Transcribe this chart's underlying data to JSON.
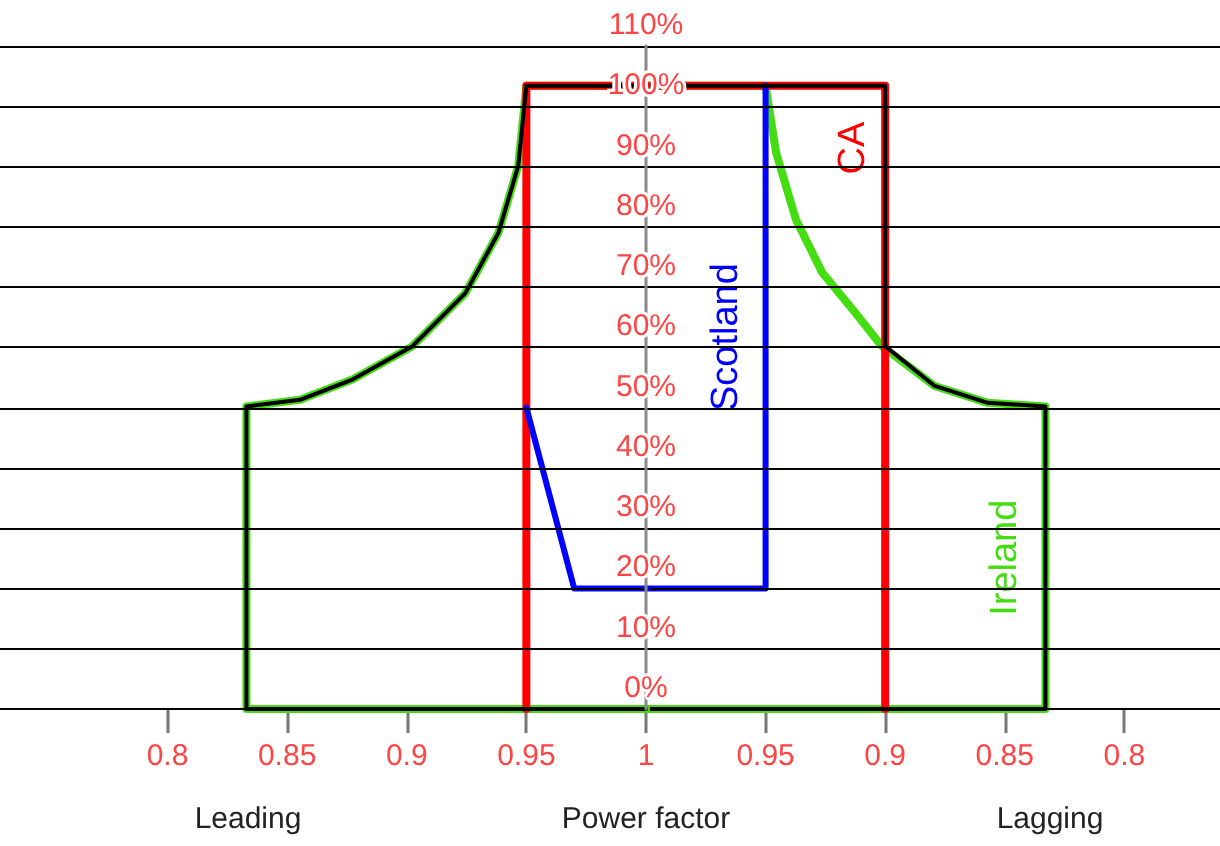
{
  "chart_data": [
    {
      "type": "line",
      "xlabel": "Power factor",
      "annotations": [
        "Leading"
      ],
      "xlim": [
        0.73,
        1.0
      ],
      "xticks": [
        0.8,
        0.85,
        0.9,
        0.95,
        1
      ],
      "ylim": [
        0,
        110
      ],
      "yticks": [
        {
          "value": 0,
          "label": "0%"
        },
        {
          "value": 10,
          "label": "10%"
        },
        {
          "value": 20,
          "label": "20%"
        },
        {
          "value": 30,
          "label": "30%"
        },
        {
          "value": 40,
          "label": "40%"
        },
        {
          "value": 50,
          "label": "50%"
        },
        {
          "value": 60,
          "label": "60%"
        },
        {
          "value": 70,
          "label": "70%"
        },
        {
          "value": 80,
          "label": "80%"
        },
        {
          "value": 90,
          "label": "90%"
        },
        {
          "value": 100,
          "label": "100%"
        },
        {
          "value": 110,
          "label": "110%"
        }
      ],
      "grid": "y",
      "legend": false,
      "marker": "none",
      "line_style": "solid",
      "series": [
        {
          "color": "#44dd11",
          "x": [
            1,
            0.833,
            0.833,
            0.8554,
            0.8775,
            0.9024,
            0.9245,
            0.9383,
            0.9466,
            0.95,
            1
          ],
          "values": [
            0,
            0,
            50.2,
            51.3,
            54.7,
            60.2,
            69,
            79,
            90.1,
            103.4,
            103.4
          ]
        },
        {
          "color": "#ff0000",
          "x": [
            0.95,
            0.95,
            1
          ],
          "values": [
            0,
            103.4,
            103.4
          ]
        },
        {
          "color": "#0000ff",
          "x": [
            0.95,
            0.97,
            1
          ],
          "values": [
            50,
            20,
            20
          ]
        },
        {
          "color": "#000000",
          "x": [
            1,
            0.833,
            0.833,
            0.8554,
            0.8775,
            0.9024,
            0.9245,
            0.9383,
            0.9466,
            0.95,
            1
          ],
          "values": [
            0,
            0,
            50.2,
            51.3,
            54.7,
            60.2,
            69,
            79,
            90.1,
            103.4,
            103.4
          ]
        }
      ]
    },
    {
      "type": "line",
      "annotations": [
        "Lagging"
      ],
      "xlim": [
        1.0,
        0.76
      ],
      "xticks": [
        0.95,
        0.9,
        0.85,
        0.8
      ],
      "ylim": [
        0,
        110
      ],
      "tick_labels": "x",
      "grid": "y",
      "legend": false,
      "marker": "none",
      "line_style": "solid",
      "series": [
        {
          "name": "Ireland",
          "color": "#44dd11",
          "x": [
            1,
            0.95,
            0.9456,
            0.9373,
            0.9263,
            0.9124,
            0.9014,
            0.8793,
            0.8571,
            0.833,
            0.833,
            1
          ],
          "values": [
            103.4,
            103.4,
            92.3,
            81.2,
            72.4,
            65.7,
            60.2,
            53.6,
            50.8,
            50.2,
            0,
            0
          ]
        },
        {
          "name": "CA",
          "color": "#ff0000",
          "x": [
            1,
            0.9,
            0.9
          ],
          "values": [
            103.4,
            103.4,
            0
          ]
        },
        {
          "name": "Scotland",
          "color": "#0000ff",
          "x": [
            1,
            0.95,
            0.95
          ],
          "values": [
            20,
            20,
            103.4
          ]
        },
        {
          "color": "#000000",
          "x": [
            1,
            0.9,
            0.9,
            0.8793,
            0.8571,
            0.833,
            0.833,
            1
          ],
          "values": [
            103.4,
            103.4,
            60.2,
            53.6,
            50.8,
            50.2,
            0,
            0
          ]
        }
      ]
    }
  ]
}
